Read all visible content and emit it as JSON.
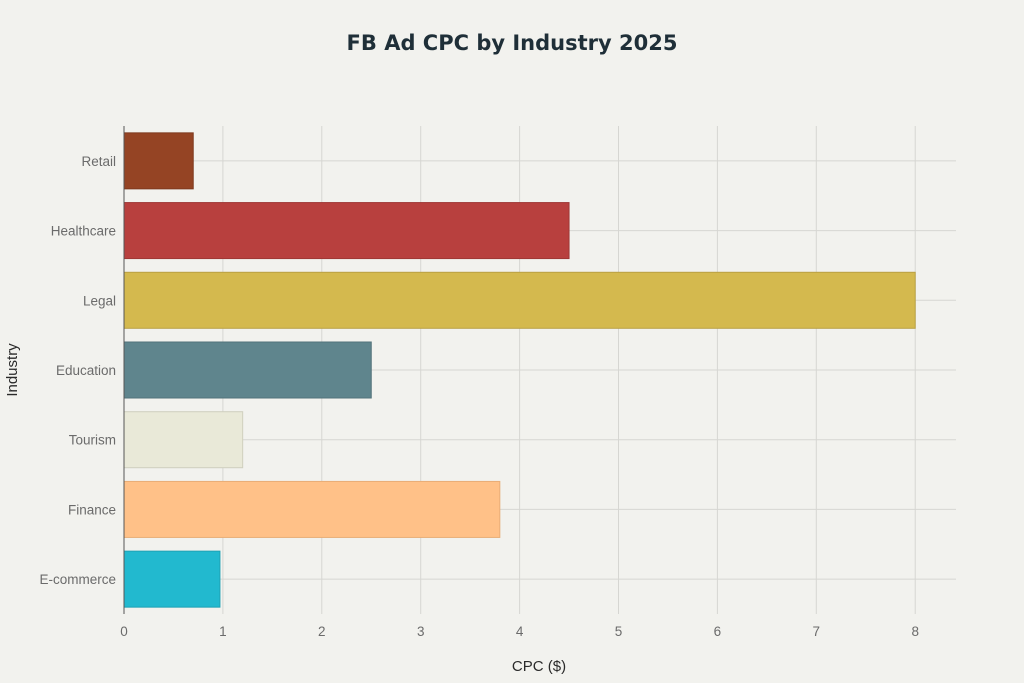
{
  "chart_data": {
    "type": "bar",
    "orientation": "horizontal",
    "title": "FB Ad CPC by Industry 2025",
    "xlabel": "CPC ($)",
    "ylabel": "Industry",
    "categories": [
      "Retail",
      "Healthcare",
      "Legal",
      "Education",
      "Tourism",
      "Finance",
      "E-commerce"
    ],
    "values": [
      0.7,
      4.5,
      8.0,
      2.5,
      1.2,
      3.8,
      0.97
    ],
    "colors": [
      "#954424",
      "#b8403e",
      "#d4b94e",
      "#5f858d",
      "#e9e9d8",
      "#ffc188",
      "#22b9cf"
    ],
    "border_colors": [
      "#7e3a1f",
      "#9f3735",
      "#b9a043",
      "#52737a",
      "#cfcfbe",
      "#e8ad76",
      "#1ea1b4"
    ],
    "xticks": [
      "0",
      "1",
      "2",
      "3",
      "4",
      "5",
      "6",
      "7",
      "8"
    ],
    "xlim": [
      0,
      8.45
    ],
    "grid": true
  }
}
